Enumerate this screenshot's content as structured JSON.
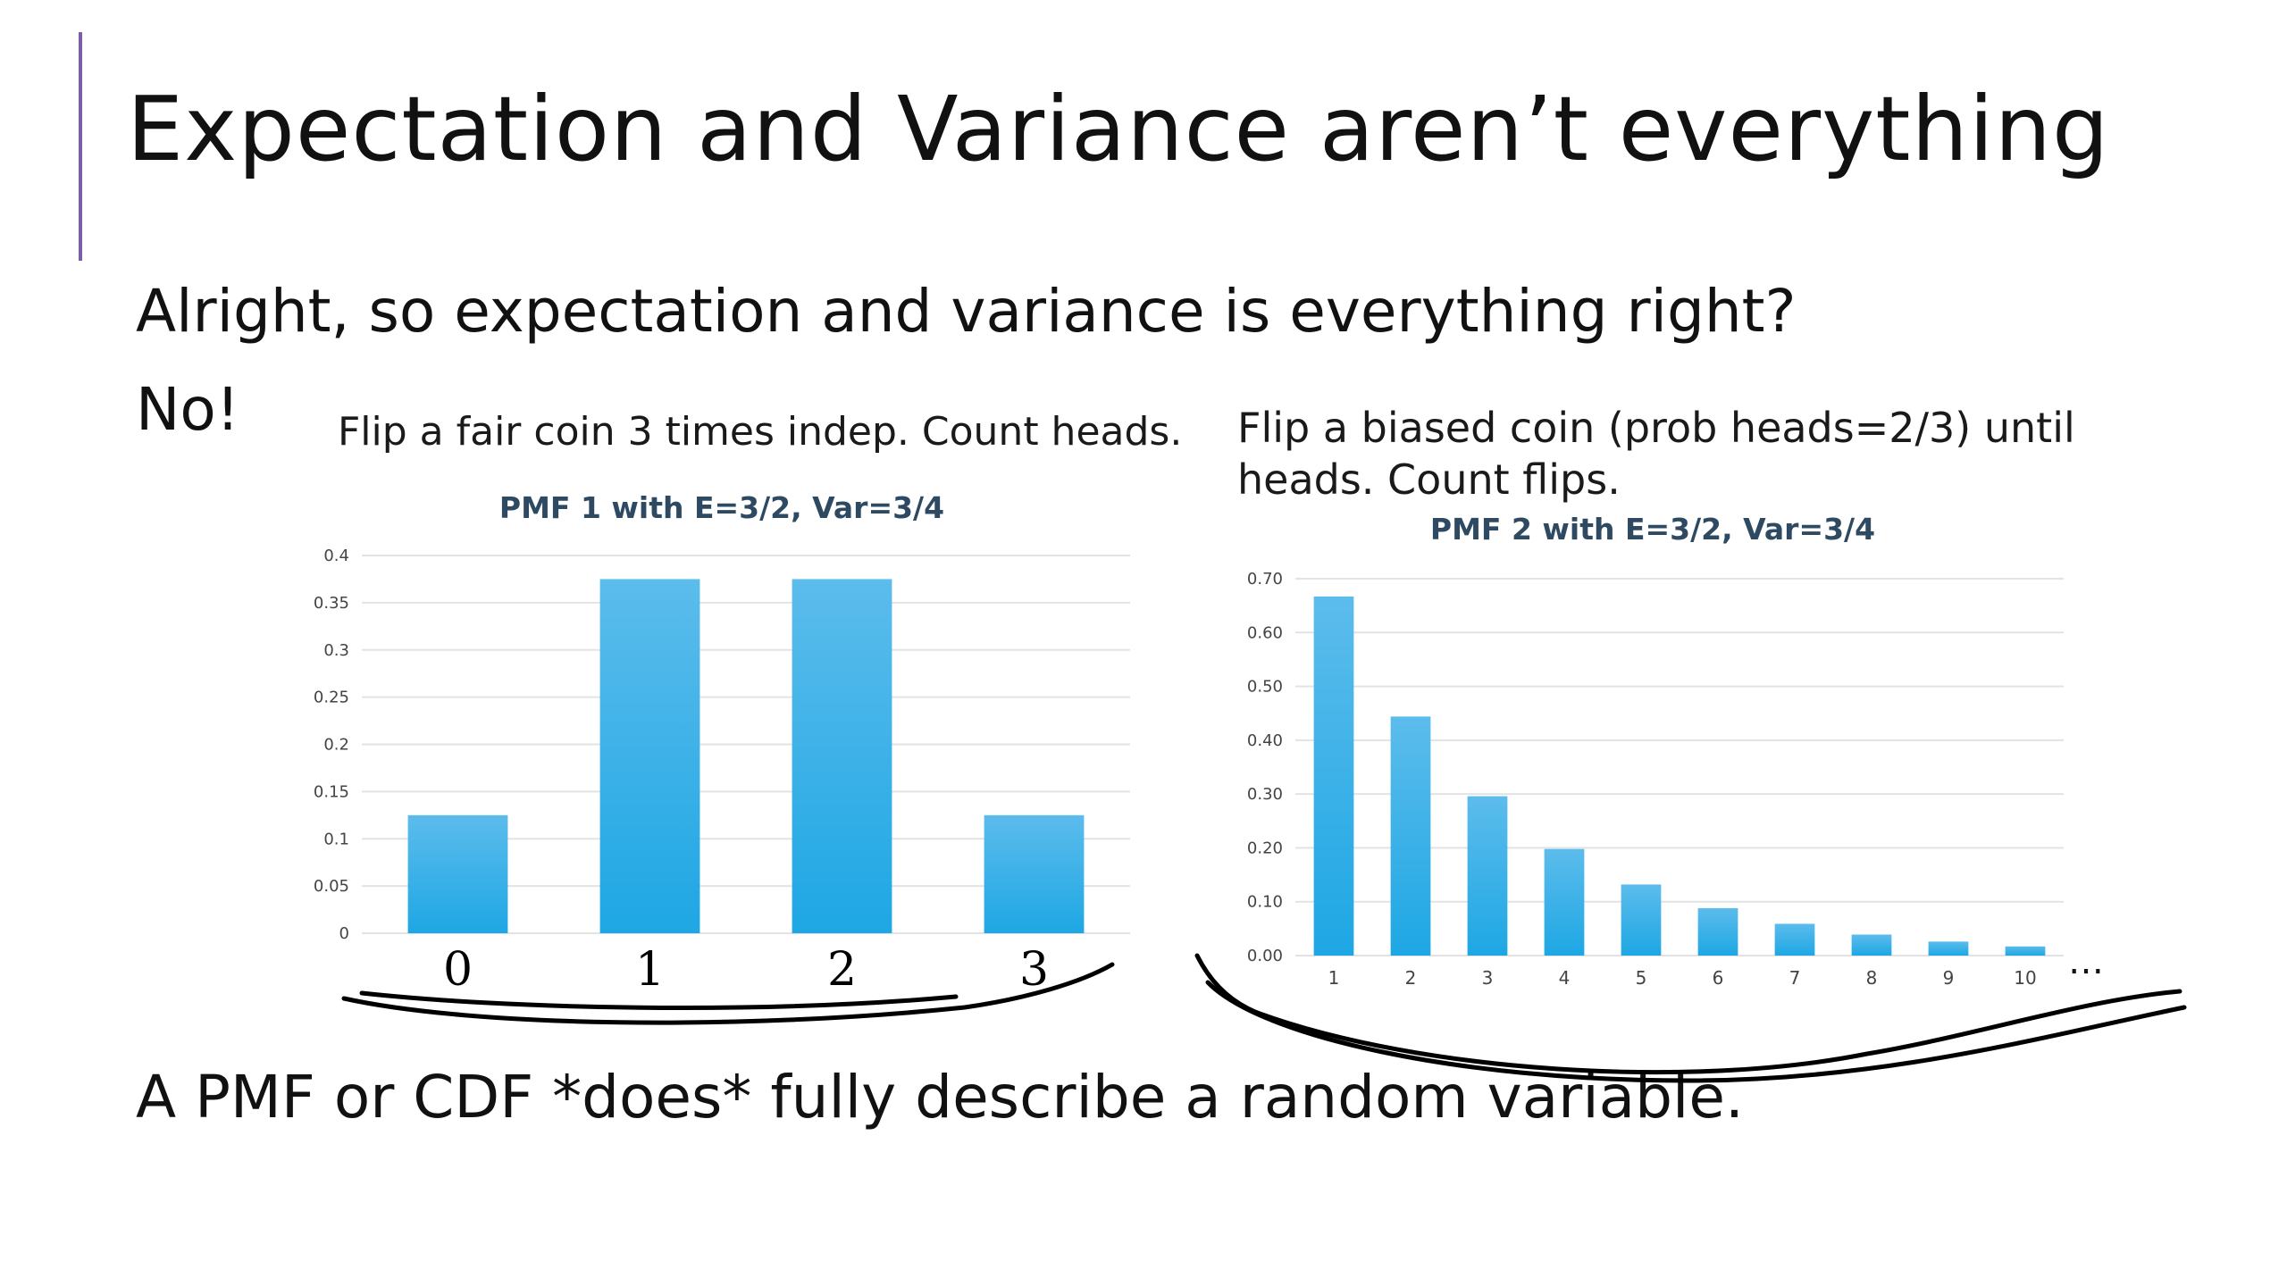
{
  "slide": {
    "title": "Expectation and Variance aren’t everything",
    "line1": "Alright, so expectation and variance is everything right?",
    "line2": "No!",
    "line3": "A PMF or CDF *does* fully describe a random variable."
  },
  "captions": {
    "left": "Flip a fair coin 3 times indep. Count heads.",
    "right": "Flip a biased coin (prob heads=2/3) until heads. Count flips."
  },
  "handwritten_x_labels": [
    "0",
    "1",
    "2",
    "3"
  ],
  "continuation": "…",
  "chart_data": [
    {
      "type": "bar",
      "title": "PMF 1 with E=3/2, Var=3/4",
      "categories": [
        "0",
        "1",
        "2",
        "3"
      ],
      "values": [
        0.125,
        0.375,
        0.375,
        0.125
      ],
      "ylim": [
        0,
        0.4
      ],
      "yticks": [
        "0",
        "0.05",
        "0.1",
        "0.15",
        "0.2",
        "0.25",
        "0.3",
        "0.35",
        "0.4"
      ],
      "xlabel": "",
      "ylabel": "",
      "grid": true,
      "bar_color": "#1ea7e4"
    },
    {
      "type": "bar",
      "title": "PMF 2 with E=3/2, Var=3/4",
      "categories": [
        "1",
        "2",
        "3",
        "4",
        "5",
        "6",
        "7",
        "8",
        "9",
        "10"
      ],
      "values": [
        0.667,
        0.444,
        0.296,
        0.198,
        0.132,
        0.088,
        0.059,
        0.039,
        0.026,
        0.017
      ],
      "ylim": [
        0,
        0.7
      ],
      "yticks": [
        "0.00",
        "0.10",
        "0.20",
        "0.30",
        "0.40",
        "0.50",
        "0.60",
        "0.70"
      ],
      "xlabel": "",
      "ylabel": "",
      "grid": true,
      "bar_color": "#1ea7e4"
    }
  ]
}
